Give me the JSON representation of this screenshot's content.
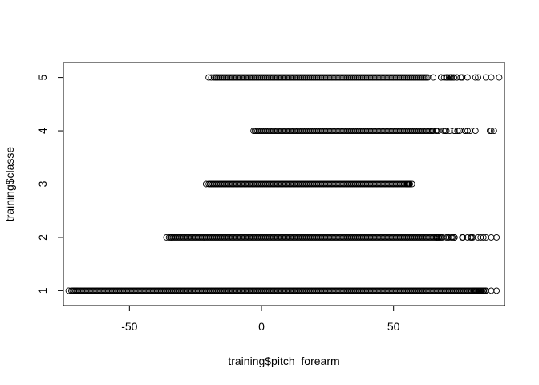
{
  "chart_data": {
    "type": "scatter",
    "title": "",
    "xlabel": "training$pitch_forearm",
    "ylabel": "training$classe",
    "xlim": [
      -75,
      92
    ],
    "ylim": [
      0.72,
      5.28
    ],
    "x_ticks": [
      {
        "value": -50,
        "label": "-50"
      },
      {
        "value": 0,
        "label": "0"
      },
      {
        "value": 50,
        "label": "50"
      }
    ],
    "y_ticks": [
      {
        "value": 1,
        "label": "1"
      },
      {
        "value": 2,
        "label": "2"
      },
      {
        "value": 3,
        "label": "3"
      },
      {
        "value": 4,
        "label": "4"
      },
      {
        "value": 5,
        "label": "5"
      }
    ],
    "grid": false,
    "marker": "open-circle",
    "series": [
      {
        "y": 1,
        "x_min": -73,
        "x_max": 89,
        "dense_min": -72,
        "dense_max": 80,
        "outliers": [
          -73,
          -71,
          -70,
          81,
          82,
          84,
          85,
          87,
          89
        ]
      },
      {
        "y": 2,
        "x_min": -36,
        "x_max": 89,
        "dense_min": -35,
        "dense_max": 66,
        "outliers": [
          -36,
          -34,
          67,
          68,
          70,
          71,
          73,
          76,
          80,
          82,
          83,
          84,
          85,
          87,
          89
        ]
      },
      {
        "y": 3,
        "x_min": -21,
        "x_max": 57,
        "dense_min": -20,
        "dense_max": 55,
        "outliers": [
          -21,
          55.5,
          57
        ]
      },
      {
        "y": 4,
        "x_min": -3,
        "x_max": 88,
        "dense_min": -3,
        "dense_max": 64,
        "outliers": [
          65,
          67,
          70,
          73,
          75,
          77,
          79,
          81,
          86.5,
          87,
          88
        ]
      },
      {
        "y": 5,
        "x_min": -20,
        "x_max": 90,
        "dense_min": -18,
        "dense_max": 62,
        "outliers": [
          -20,
          -19,
          -17,
          63,
          65,
          68,
          71,
          74,
          76,
          78,
          81,
          82,
          85,
          87,
          90
        ]
      }
    ]
  }
}
